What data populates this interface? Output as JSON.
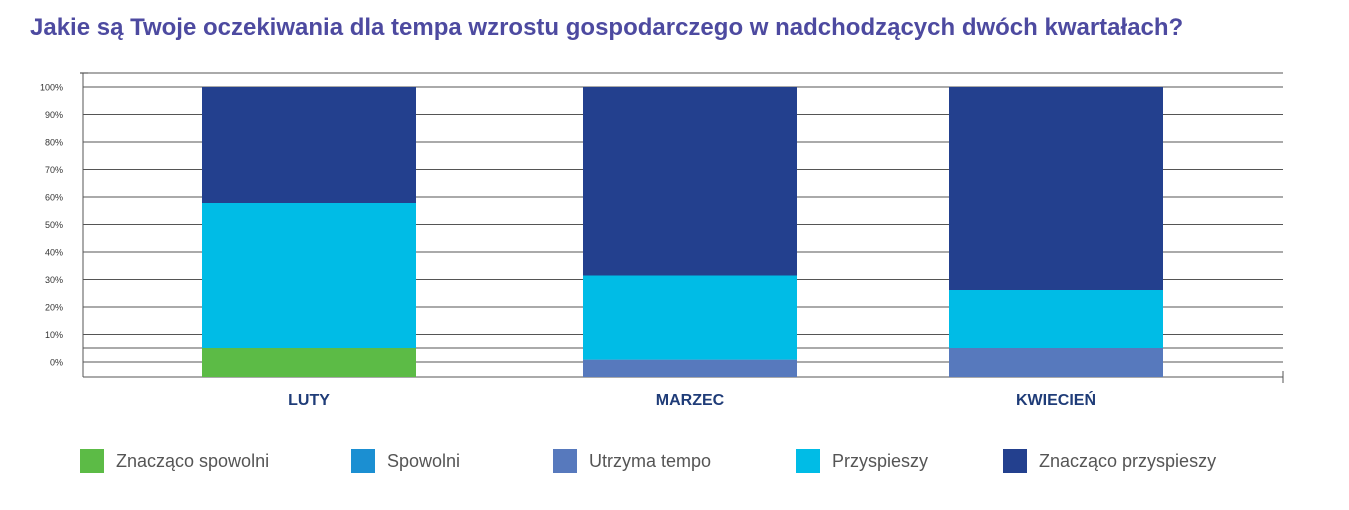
{
  "chart_data": {
    "type": "bar",
    "stacked": true,
    "title": "Jakie są Twoje oczekiwania dla tempa wzrostu gospodarczego w nadchodzących dwóch kwartałach?",
    "categories": [
      "LUTY",
      "MARZEC",
      "KWIECIEŃ"
    ],
    "ylim": [
      0,
      100
    ],
    "yticks": [
      "0%",
      "10%",
      "20%",
      "30%",
      "40%",
      "50%",
      "60%",
      "70%",
      "80%",
      "90%",
      "100%"
    ],
    "grid": true,
    "legend_position": "bottom",
    "series": [
      {
        "name": "Znacząco spowolni",
        "color": "#5cbb46",
        "values": [
          10,
          0,
          0
        ]
      },
      {
        "name": "Spowolni",
        "color": "#1b8fd2",
        "values": [
          0,
          0,
          0
        ]
      },
      {
        "name": "Utrzyma tempo",
        "color": "#5779bd",
        "values": [
          0,
          6,
          10
        ]
      },
      {
        "name": "Przyspieszy",
        "color": "#00bce6",
        "values": [
          50,
          29,
          20
        ]
      },
      {
        "name": "Znacząco przyspieszy",
        "color": "#23408e",
        "values": [
          40,
          65,
          70
        ]
      }
    ]
  }
}
